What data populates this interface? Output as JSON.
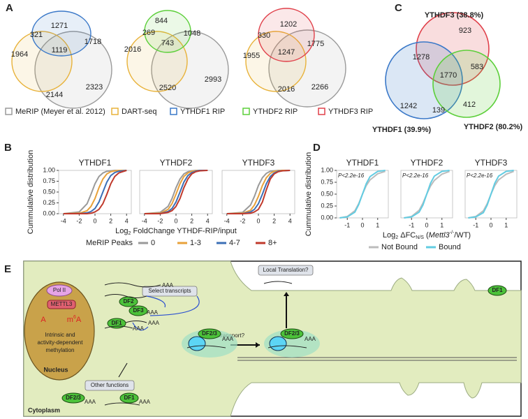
{
  "panel_labels": [
    "A",
    "B",
    "C",
    "D",
    "E"
  ],
  "panel_a": {
    "venns": [
      {
        "regions": [
          1271,
          1718,
          321,
          1119,
          1964,
          2144,
          2323
        ]
      },
      {
        "regions": [
          844,
          1048,
          269,
          743,
          2016,
          2520,
          2993
        ]
      },
      {
        "regions": [
          1202,
          1775,
          330,
          1247,
          1955,
          2016,
          2266
        ]
      }
    ],
    "legend": [
      {
        "name": "MeRIP (Meyer et al. 2012)",
        "color": "#9a9a9a"
      },
      {
        "name": "DART-seq",
        "color": "#e8b23a"
      },
      {
        "name": "YTHDF1 RIP",
        "color": "#3a78c8"
      },
      {
        "name": "YTHDF2 RIP",
        "color": "#5ccf3a"
      },
      {
        "name": "YTHDF3 RIP",
        "color": "#e0404a"
      }
    ]
  },
  "panel_c": {
    "sets": [
      {
        "name": "YTHDF3 (38.8%)",
        "color": "#e0404a"
      },
      {
        "name": "YTHDF1 (39.9%)",
        "color": "#3a78c8"
      },
      {
        "name": "YTHDF2 (80.2%)",
        "color": "#5ccf3a"
      }
    ],
    "regions": [
      923,
      1278,
      583,
      1770,
      1242,
      412,
      139
    ]
  },
  "chart_data": [
    {
      "type": "line",
      "title": "YTHDF1",
      "ylabel": "Cummulative distribution",
      "legend_title": "MeRIP Peaks",
      "x": [
        -4,
        -2,
        -1,
        -0.5,
        0,
        0.5,
        1,
        1.5,
        2,
        2.5,
        3,
        4
      ],
      "series": [
        {
          "name": "0",
          "color": "#9a9a9a",
          "values": [
            0,
            0.04,
            0.23,
            0.45,
            0.69,
            0.86,
            0.94,
            0.98,
            0.99,
            1,
            1,
            1
          ]
        },
        {
          "name": "1-3",
          "color": "#e8a13a",
          "values": [
            0,
            0.01,
            0.07,
            0.17,
            0.35,
            0.6,
            0.8,
            0.92,
            0.97,
            0.99,
            1,
            1
          ]
        },
        {
          "name": "4-7",
          "color": "#3b6fb6",
          "values": [
            0,
            0,
            0.02,
            0.05,
            0.12,
            0.27,
            0.5,
            0.73,
            0.88,
            0.95,
            0.98,
            1
          ]
        },
        {
          "name": "8+",
          "color": "#c0392b",
          "values": [
            0,
            0,
            0,
            0.01,
            0.04,
            0.1,
            0.23,
            0.45,
            0.69,
            0.86,
            0.94,
            1
          ]
        }
      ],
      "xlim": [
        -4.6,
        4.6
      ],
      "ylim": [
        0,
        1
      ],
      "xticks": [
        -4,
        -2,
        0,
        2,
        4
      ],
      "yticks": [
        {
          "value": 0,
          "label": "0.00"
        },
        {
          "value": 0.25,
          "label": "0.25"
        },
        {
          "value": 0.5,
          "label": "0.50"
        },
        {
          "value": 0.75,
          "label": "0.75"
        },
        {
          "value": 1,
          "label": "1.00"
        }
      ]
    },
    {
      "type": "line",
      "title": "YTHDF2",
      "xlabel": [
        "Log",
        "2",
        " FoldChange YTHDF-RIP/input"
      ],
      "x": [
        -4,
        -2,
        -1,
        -0.5,
        0,
        0.5,
        1,
        1.5,
        2,
        2.5,
        3,
        4
      ],
      "series": [
        {
          "name": "0",
          "color": "#9a9a9a",
          "values": [
            0,
            0.03,
            0.17,
            0.35,
            0.6,
            0.8,
            0.92,
            0.97,
            0.99,
            1,
            1,
            1
          ]
        },
        {
          "name": "1-3",
          "color": "#e8a13a",
          "values": [
            0,
            0.01,
            0.1,
            0.23,
            0.45,
            0.69,
            0.86,
            0.94,
            0.98,
            0.99,
            1,
            1
          ]
        },
        {
          "name": "4-7",
          "color": "#3b6fb6",
          "values": [
            0,
            0,
            0.05,
            0.12,
            0.27,
            0.5,
            0.73,
            0.88,
            0.95,
            0.98,
            1,
            1
          ]
        },
        {
          "name": "8+",
          "color": "#c0392b",
          "values": [
            0,
            0,
            0.03,
            0.07,
            0.17,
            0.35,
            0.6,
            0.8,
            0.92,
            0.97,
            0.99,
            1
          ]
        }
      ],
      "xlim": [
        -4.6,
        4.6
      ],
      "ylim": [
        0,
        1
      ],
      "xticks": [
        -4,
        -2,
        0,
        2,
        4
      ]
    },
    {
      "type": "line",
      "title": "YTHDF3",
      "x": [
        -4,
        -2,
        -1,
        -0.5,
        0,
        0.5,
        1,
        1.5,
        2,
        2.5,
        3,
        4
      ],
      "series": [
        {
          "name": "0",
          "color": "#9a9a9a",
          "values": [
            0,
            0.03,
            0.2,
            0.4,
            0.65,
            0.83,
            0.93,
            0.98,
            0.99,
            1,
            1,
            1
          ]
        },
        {
          "name": "1-3",
          "color": "#e8a13a",
          "values": [
            0,
            0.01,
            0.08,
            0.2,
            0.4,
            0.65,
            0.83,
            0.93,
            0.98,
            0.99,
            1,
            1
          ]
        },
        {
          "name": "4-7",
          "color": "#3b6fb6",
          "values": [
            0,
            0,
            0.04,
            0.1,
            0.23,
            0.45,
            0.69,
            0.86,
            0.94,
            0.98,
            0.99,
            1
          ]
        },
        {
          "name": "8+",
          "color": "#c0392b",
          "values": [
            0,
            0,
            0.01,
            0.04,
            0.1,
            0.27,
            0.55,
            0.8,
            0.92,
            0.97,
            0.99,
            1
          ]
        }
      ],
      "xlim": [
        -4.6,
        4.6
      ],
      "ylim": [
        0,
        1
      ],
      "xticks": [
        -4,
        -2,
        0,
        2,
        4
      ]
    },
    {
      "type": "line",
      "title": "YTHDF1",
      "ylabel": "Cummulative distribution",
      "annotation": "P<2.2e-16",
      "x": [
        -1.5,
        -1,
        -0.5,
        -0.25,
        0,
        0.25,
        0.5,
        1,
        1.5
      ],
      "series": [
        {
          "name": "Not Bound",
          "color": "#bcbcbc",
          "values": [
            0,
            0.03,
            0.15,
            0.3,
            0.5,
            0.68,
            0.8,
            0.93,
            0.98
          ]
        },
        {
          "name": "Bound",
          "color": "#62cce2",
          "values": [
            0,
            0.02,
            0.12,
            0.28,
            0.5,
            0.72,
            0.87,
            0.98,
            1
          ]
        }
      ],
      "xlim": [
        -1.7,
        1.7
      ],
      "ylim": [
        0,
        1
      ],
      "xticks": [
        -1,
        0,
        1
      ],
      "yticks": [
        {
          "value": 0,
          "label": "0.00"
        },
        {
          "value": 0.25,
          "label": "0.25"
        },
        {
          "value": 0.5,
          "label": "0.50"
        },
        {
          "value": 0.75,
          "label": "0.75"
        },
        {
          "value": 1,
          "label": "1.00"
        }
      ]
    },
    {
      "type": "line",
      "title": "YTHDF2",
      "annotation": "P<2.2e-16",
      "xlabel": [
        "Log",
        "2",
        " ΔFC",
        "N/S",
        " (",
        "Mettl3",
        "-/-",
        "/WT)"
      ],
      "x": [
        -1.5,
        -1,
        -0.5,
        -0.25,
        0,
        0.25,
        0.5,
        1,
        1.5
      ],
      "series": [
        {
          "name": "Not Bound",
          "color": "#bcbcbc",
          "values": [
            0,
            0.03,
            0.16,
            0.31,
            0.5,
            0.67,
            0.79,
            0.92,
            0.98
          ]
        },
        {
          "name": "Bound",
          "color": "#62cce2",
          "values": [
            0,
            0.02,
            0.12,
            0.27,
            0.5,
            0.73,
            0.88,
            0.98,
            1
          ]
        }
      ],
      "xlim": [
        -1.7,
        1.7
      ],
      "ylim": [
        0,
        1
      ],
      "xticks": [
        -1,
        0,
        1
      ]
    },
    {
      "type": "line",
      "title": "YTHDF3",
      "annotation": "P<2.2e-16",
      "x": [
        -1.5,
        -1,
        -0.5,
        -0.25,
        0,
        0.25,
        0.5,
        1,
        1.5
      ],
      "series": [
        {
          "name": "Not Bound",
          "color": "#bcbcbc",
          "values": [
            0,
            0.03,
            0.15,
            0.3,
            0.5,
            0.68,
            0.8,
            0.92,
            0.98
          ]
        },
        {
          "name": "Bound",
          "color": "#62cce2",
          "values": [
            0,
            0.02,
            0.11,
            0.27,
            0.5,
            0.73,
            0.88,
            0.98,
            1
          ]
        }
      ],
      "xlim": [
        -1.7,
        1.7
      ],
      "ylim": [
        0,
        1
      ],
      "xticks": [
        -1,
        0,
        1
      ]
    }
  ],
  "panel_e": {
    "pol": "Pol II",
    "writer": "METTL3",
    "base": "A",
    "modified": [
      "m",
      "6",
      "A"
    ],
    "methylation": [
      "Intrinsic and",
      "activity-dependent",
      "methylation"
    ],
    "nucleus": "Nucleus",
    "cytoplasm": "Cytoplasm",
    "boxes": [
      "Select transcripts",
      "Other functions",
      "Local Translation?"
    ],
    "transport": "Active transport?",
    "readers": [
      "DF2",
      "DF3",
      "DF1",
      "DF2/3",
      "DF2/3",
      "DF1",
      "DF2/3",
      "DF1"
    ],
    "tails": [
      "AAA",
      "AAA",
      "AAA",
      "AAA",
      "AAA",
      "AAA",
      "AAA",
      "AAA"
    ]
  }
}
